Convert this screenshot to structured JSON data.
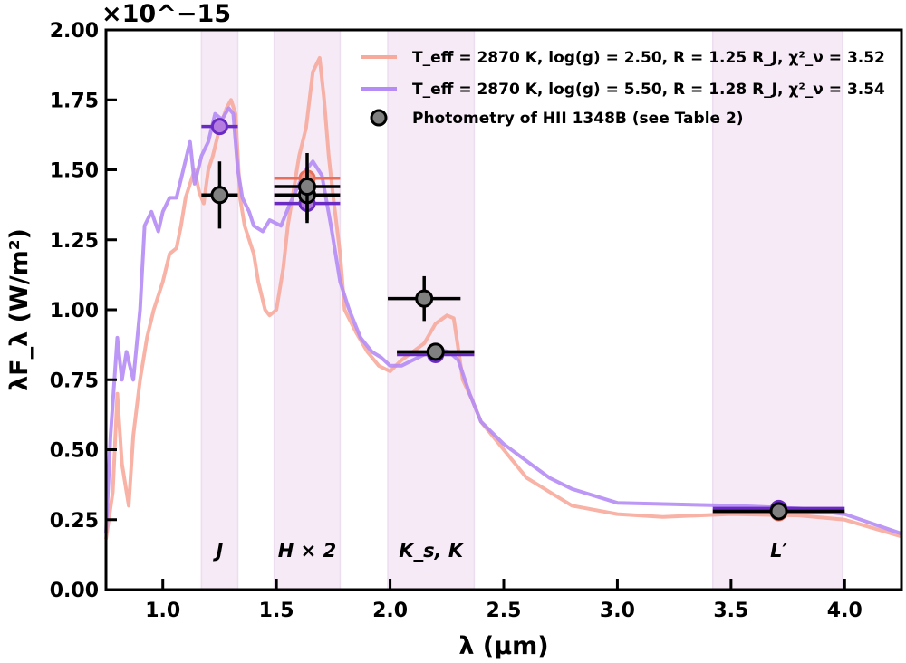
{
  "chart_data": {
    "type": "line",
    "xlabel": "λ (μm)",
    "ylabel": "λF_λ (W/m²)",
    "y_multiplier": "×10^−15",
    "xlim": [
      0.75,
      4.25
    ],
    "ylim": [
      0,
      2.0
    ],
    "grid": false,
    "legend_position": "top-right",
    "x_ticks": [
      "1.0",
      "1.5",
      "2.0",
      "2.5",
      "3.0",
      "3.5",
      "4.0"
    ],
    "y_ticks": [
      "0.00",
      "0.25",
      "0.50",
      "0.75",
      "1.00",
      "1.25",
      "1.50",
      "1.75",
      "2.00"
    ],
    "colors": {
      "model_low_g": "#f7aa9c",
      "model_high_g": "#b58cf5",
      "phot": "#808080",
      "synth_low_g": "#e8705a",
      "synth_high_g": "#6a2bc4",
      "band_fill": "#f3e4f3"
    },
    "bands": [
      {
        "label": "J",
        "range": [
          1.17,
          1.33
        ]
      },
      {
        "label": "H × 2",
        "range": [
          1.49,
          1.78
        ]
      },
      {
        "label": "K_s, K",
        "range": [
          1.99,
          2.37
        ]
      },
      {
        "label": "L′",
        "range": [
          3.42,
          3.99
        ]
      }
    ],
    "series": [
      {
        "name": "T_eff = 2870 K, log(g) = 2.50, R = 1.25 R_J, χ²_ν = 3.52",
        "color": "#f7aa9c",
        "points": [
          [
            0.75,
            0.18
          ],
          [
            0.78,
            0.35
          ],
          [
            0.8,
            0.7
          ],
          [
            0.82,
            0.45
          ],
          [
            0.85,
            0.3
          ],
          [
            0.87,
            0.55
          ],
          [
            0.9,
            0.75
          ],
          [
            0.93,
            0.9
          ],
          [
            0.96,
            1.0
          ],
          [
            1.0,
            1.1
          ],
          [
            1.03,
            1.2
          ],
          [
            1.06,
            1.22
          ],
          [
            1.08,
            1.3
          ],
          [
            1.1,
            1.4
          ],
          [
            1.12,
            1.45
          ],
          [
            1.14,
            1.5
          ],
          [
            1.16,
            1.42
          ],
          [
            1.18,
            1.38
          ],
          [
            1.2,
            1.5
          ],
          [
            1.22,
            1.55
          ],
          [
            1.25,
            1.65
          ],
          [
            1.28,
            1.72
          ],
          [
            1.3,
            1.75
          ],
          [
            1.32,
            1.7
          ],
          [
            1.34,
            1.4
          ],
          [
            1.36,
            1.3
          ],
          [
            1.4,
            1.2
          ],
          [
            1.42,
            1.1
          ],
          [
            1.45,
            1.0
          ],
          [
            1.47,
            0.98
          ],
          [
            1.5,
            1.0
          ],
          [
            1.53,
            1.15
          ],
          [
            1.55,
            1.3
          ],
          [
            1.58,
            1.45
          ],
          [
            1.6,
            1.55
          ],
          [
            1.63,
            1.65
          ],
          [
            1.66,
            1.85
          ],
          [
            1.69,
            1.9
          ],
          [
            1.71,
            1.75
          ],
          [
            1.73,
            1.55
          ],
          [
            1.75,
            1.4
          ],
          [
            1.78,
            1.2
          ],
          [
            1.8,
            1.0
          ],
          [
            1.85,
            0.92
          ],
          [
            1.9,
            0.85
          ],
          [
            1.95,
            0.8
          ],
          [
            2.0,
            0.78
          ],
          [
            2.05,
            0.82
          ],
          [
            2.1,
            0.85
          ],
          [
            2.15,
            0.88
          ],
          [
            2.2,
            0.95
          ],
          [
            2.25,
            0.98
          ],
          [
            2.28,
            0.97
          ],
          [
            2.32,
            0.75
          ],
          [
            2.36,
            0.68
          ],
          [
            2.4,
            0.6
          ],
          [
            2.5,
            0.5
          ],
          [
            2.6,
            0.4
          ],
          [
            2.7,
            0.35
          ],
          [
            2.8,
            0.3
          ],
          [
            3.0,
            0.27
          ],
          [
            3.2,
            0.26
          ],
          [
            3.5,
            0.27
          ],
          [
            3.8,
            0.265
          ],
          [
            4.0,
            0.25
          ],
          [
            4.25,
            0.19
          ]
        ]
      },
      {
        "name": "T_eff = 2870 K, log(g) = 5.50, R = 1.28 R_J, χ²_ν = 3.54",
        "color": "#b58cf5",
        "points": [
          [
            0.75,
            0.2
          ],
          [
            0.77,
            0.55
          ],
          [
            0.8,
            0.9
          ],
          [
            0.82,
            0.75
          ],
          [
            0.84,
            0.85
          ],
          [
            0.87,
            0.75
          ],
          [
            0.9,
            1.0
          ],
          [
            0.92,
            1.3
          ],
          [
            0.95,
            1.35
          ],
          [
            0.98,
            1.28
          ],
          [
            1.0,
            1.35
          ],
          [
            1.03,
            1.4
          ],
          [
            1.06,
            1.4
          ],
          [
            1.09,
            1.5
          ],
          [
            1.12,
            1.6
          ],
          [
            1.14,
            1.45
          ],
          [
            1.17,
            1.55
          ],
          [
            1.2,
            1.6
          ],
          [
            1.23,
            1.7
          ],
          [
            1.26,
            1.68
          ],
          [
            1.29,
            1.72
          ],
          [
            1.31,
            1.7
          ],
          [
            1.33,
            1.5
          ],
          [
            1.35,
            1.4
          ],
          [
            1.38,
            1.35
          ],
          [
            1.4,
            1.3
          ],
          [
            1.44,
            1.28
          ],
          [
            1.47,
            1.32
          ],
          [
            1.52,
            1.3
          ],
          [
            1.56,
            1.38
          ],
          [
            1.6,
            1.45
          ],
          [
            1.63,
            1.5
          ],
          [
            1.66,
            1.53
          ],
          [
            1.7,
            1.48
          ],
          [
            1.74,
            1.3
          ],
          [
            1.78,
            1.1
          ],
          [
            1.82,
            1.0
          ],
          [
            1.87,
            0.9
          ],
          [
            1.92,
            0.85
          ],
          [
            1.96,
            0.83
          ],
          [
            2.0,
            0.8
          ],
          [
            2.05,
            0.8
          ],
          [
            2.1,
            0.82
          ],
          [
            2.15,
            0.84
          ],
          [
            2.2,
            0.86
          ],
          [
            2.26,
            0.85
          ],
          [
            2.3,
            0.82
          ],
          [
            2.35,
            0.7
          ],
          [
            2.4,
            0.6
          ],
          [
            2.5,
            0.52
          ],
          [
            2.6,
            0.46
          ],
          [
            2.65,
            0.43
          ],
          [
            2.7,
            0.4
          ],
          [
            2.8,
            0.36
          ],
          [
            3.0,
            0.31
          ],
          [
            3.5,
            0.3
          ],
          [
            3.8,
            0.29
          ],
          [
            4.0,
            0.27
          ],
          [
            4.25,
            0.2
          ]
        ]
      }
    ],
    "synthetic_photometry": [
      {
        "model": "low_g",
        "x": 1.635,
        "y": 1.47,
        "xerr": 0.145
      },
      {
        "model": "high_g",
        "x": 1.25,
        "y": 1.655,
        "xerr": 0.08
      },
      {
        "model": "high_g",
        "x": 1.635,
        "y": 1.38,
        "xerr": 0.145
      },
      {
        "model": "low_g",
        "x": 2.2,
        "y": 0.845,
        "xerr": 0.17
      },
      {
        "model": "high_g",
        "x": 2.2,
        "y": 0.84,
        "xerr": 0.17
      },
      {
        "model": "low_g",
        "x": 3.71,
        "y": 0.275,
        "xerr": 0.29
      },
      {
        "model": "high_g",
        "x": 3.71,
        "y": 0.29,
        "xerr": 0.29
      }
    ],
    "photometry": {
      "name": "Photometry of HII 1348B (see Table 2)",
      "points": [
        {
          "x": 1.25,
          "y": 1.41,
          "xerr": 0.08,
          "yerr": 0.12
        },
        {
          "x": 1.635,
          "y": 1.41,
          "xerr": 0.145,
          "yerr": 0.1
        },
        {
          "x": 1.635,
          "y": 1.44,
          "xerr": 0.145,
          "yerr": 0.12
        },
        {
          "x": 2.15,
          "y": 1.04,
          "xerr": 0.16,
          "yerr": 0.08
        },
        {
          "x": 2.2,
          "y": 0.85,
          "xerr": 0.17,
          "yerr": 0.02
        },
        {
          "x": 3.71,
          "y": 0.28,
          "xerr": 0.29,
          "yerr": 0.01
        }
      ]
    }
  }
}
